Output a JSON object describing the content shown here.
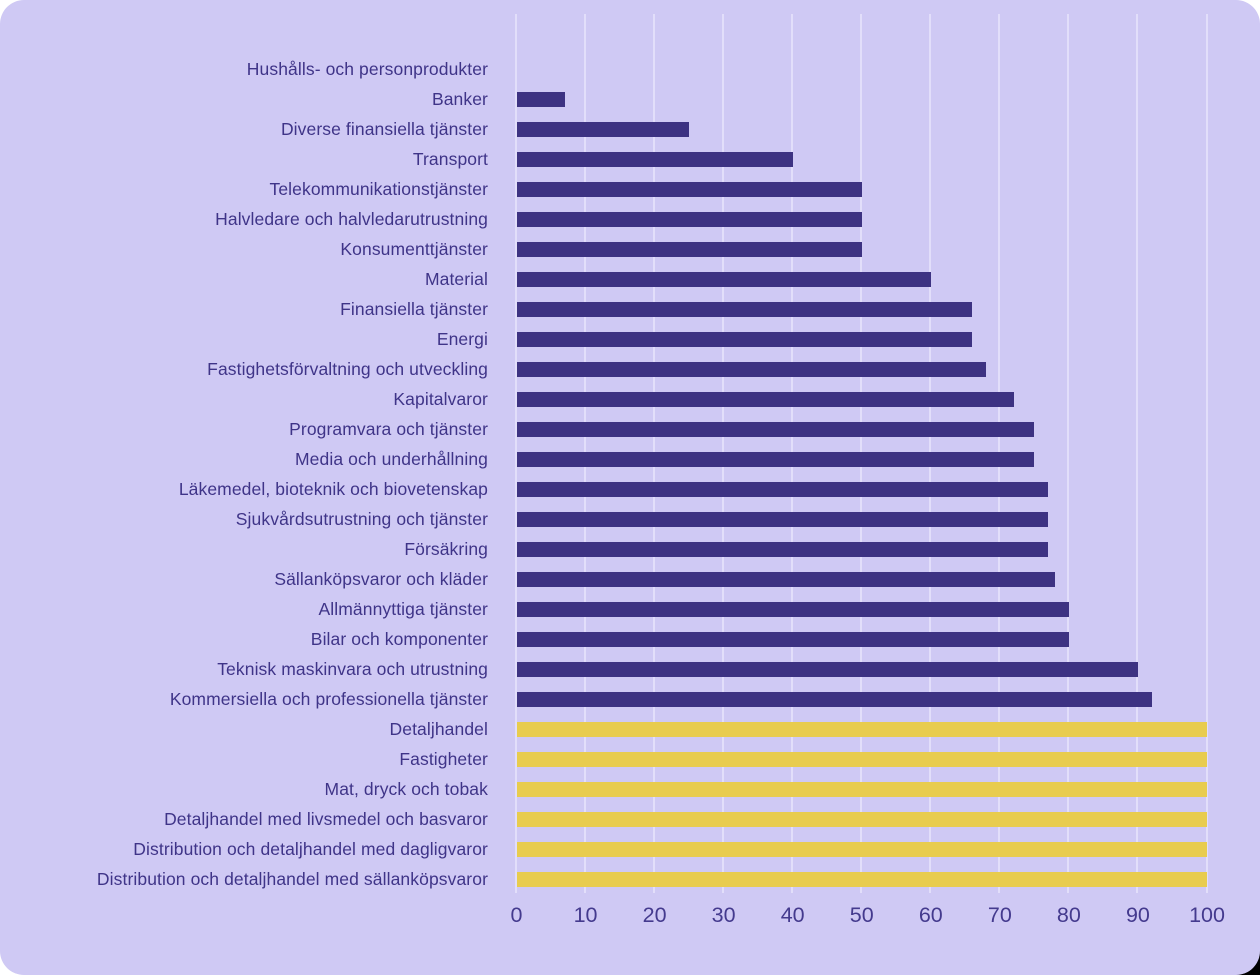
{
  "colors": {
    "card_background": "#cfc9f4",
    "bar_primary": "#3d3282",
    "bar_highlight": "#e8cc4e",
    "gridline": "#e2defa",
    "label_text": "#3f3488",
    "tick_text": "#443a8e",
    "page_background": "#ffffff",
    "corner_artifact": "#000000"
  },
  "chart_data": {
    "type": "bar",
    "orientation": "horizontal",
    "title": "",
    "xlabel": "",
    "ylabel": "",
    "xlim": [
      0,
      100
    ],
    "x_ticks": [
      0,
      10,
      20,
      30,
      40,
      50,
      60,
      70,
      80,
      90,
      100
    ],
    "grid": true,
    "legend": false,
    "categories": [
      "Hushålls- och personprodukter",
      "Banker",
      "Diverse finansiella tjänster",
      "Transport",
      "Telekommunikationstjänster",
      "Halvledare och halvledarutrustning",
      "Konsumenttjänster",
      "Material",
      "Finansiella tjänster",
      "Energi",
      "Fastighetsförvaltning och utveckling",
      "Kapitalvaror",
      "Programvara och tjänster",
      "Media och underhållning",
      "Läkemedel, bioteknik och biovetenskap",
      "Sjukvårdsutrustning och tjänster",
      "Försäkring",
      "Sällanköpsvaror och kläder",
      "Allmännyttiga tjänster",
      "Bilar och komponenter",
      "Teknisk maskinvara och utrustning",
      "Kommersiella och professionella tjänster",
      "Detaljhandel",
      "Fastigheter",
      "Mat, dryck och tobak",
      "Detaljhandel med livsmedel och basvaror",
      "Distribution och detaljhandel med dagligvaror",
      "Distribution och detaljhandel med sällanköpsvaror"
    ],
    "values": [
      0,
      7,
      25,
      40,
      50,
      50,
      50,
      60,
      66,
      66,
      68,
      72,
      75,
      75,
      77,
      77,
      77,
      78,
      80,
      80,
      90,
      92,
      100,
      100,
      100,
      100,
      100,
      100
    ],
    "highlighted": [
      false,
      false,
      false,
      false,
      false,
      false,
      false,
      false,
      false,
      false,
      false,
      false,
      false,
      false,
      false,
      false,
      false,
      false,
      false,
      false,
      false,
      false,
      true,
      true,
      true,
      true,
      true,
      true
    ]
  }
}
